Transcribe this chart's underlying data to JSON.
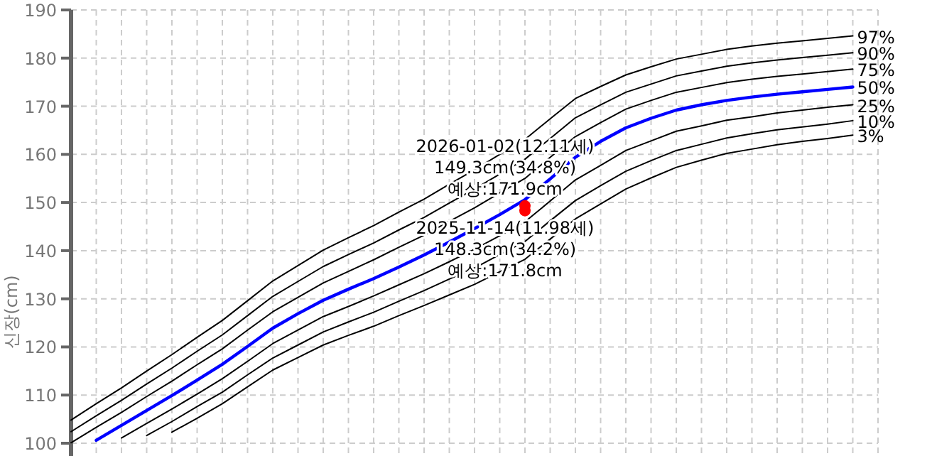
{
  "chart_data": {
    "type": "line",
    "ylabel": "신장(cm)",
    "ylim": [
      100,
      190
    ],
    "yticks": [
      100,
      110,
      120,
      130,
      140,
      150,
      160,
      170,
      180,
      190
    ],
    "categories": [
      null,
      null,
      null,
      null,
      null,
      null,
      null,
      null,
      null,
      null,
      null,
      null,
      null,
      null,
      null,
      null,
      null,
      null,
      null,
      null,
      null,
      null,
      null,
      null,
      null,
      null,
      null,
      null,
      null,
      null,
      null,
      null,
      null
    ],
    "grid": true,
    "marker": "none",
    "series": [
      {
        "name": "97%",
        "color": "#000000",
        "values": [
          104.8,
          108.2,
          111.5,
          115.0,
          118.4,
          122.0,
          125.5,
          129.6,
          133.7,
          136.9,
          140.1,
          142.7,
          145.2,
          148.0,
          150.7,
          153.8,
          156.8,
          160.0,
          163.1,
          167.4,
          171.6,
          174.1,
          176.5,
          178.2,
          179.8,
          180.8,
          181.8,
          182.5,
          183.1,
          183.6,
          184.1,
          184.6,
          null
        ]
      },
      {
        "name": "90%",
        "color": "#000000",
        "values": [
          102.4,
          105.7,
          108.9,
          112.3,
          115.6,
          119.1,
          122.5,
          126.5,
          130.5,
          133.6,
          136.7,
          139.2,
          141.6,
          144.3,
          146.9,
          149.9,
          152.8,
          155.9,
          159.0,
          163.3,
          167.6,
          170.3,
          172.9,
          174.6,
          176.3,
          177.3,
          178.3,
          179.0,
          179.6,
          180.1,
          180.6,
          181.1,
          null
        ]
      },
      {
        "name": "75%",
        "color": "#000000",
        "values": [
          100.1,
          103.3,
          106.4,
          109.7,
          112.9,
          116.3,
          119.6,
          123.5,
          127.3,
          130.3,
          133.3,
          135.7,
          138.1,
          140.7,
          143.2,
          146.1,
          148.9,
          152.0,
          155.0,
          159.4,
          163.7,
          166.6,
          169.4,
          171.2,
          172.9,
          173.9,
          174.9,
          175.6,
          176.2,
          176.7,
          177.2,
          177.7,
          null
        ]
      },
      {
        "name": "50%",
        "color": "#0000ff",
        "values": [
          null,
          100.6,
          103.7,
          106.8,
          109.9,
          113.1,
          116.4,
          120.1,
          123.9,
          126.9,
          129.7,
          132.0,
          134.2,
          136.6,
          139.1,
          141.8,
          144.6,
          147.5,
          150.6,
          154.9,
          159.4,
          162.7,
          165.5,
          167.5,
          169.2,
          170.3,
          171.2,
          171.9,
          172.5,
          173.0,
          173.5,
          174.0,
          null
        ]
      },
      {
        "name": "25%",
        "color": "#000000",
        "values": [
          null,
          null,
          101.1,
          104.1,
          107.1,
          110.2,
          113.4,
          117.0,
          120.7,
          123.5,
          126.3,
          128.4,
          130.6,
          132.9,
          135.2,
          137.7,
          140.3,
          143.1,
          146.0,
          150.3,
          154.7,
          157.7,
          160.8,
          162.8,
          164.8,
          165.9,
          167.1,
          167.8,
          168.6,
          169.2,
          169.8,
          170.3,
          null
        ]
      },
      {
        "name": "10%",
        "color": "#000000",
        "values": [
          null,
          null,
          null,
          101.6,
          104.5,
          107.6,
          110.6,
          114.2,
          117.7,
          120.4,
          123.1,
          125.2,
          127.2,
          129.5,
          131.7,
          134.1,
          136.4,
          139.2,
          141.9,
          146.2,
          150.4,
          153.5,
          156.5,
          158.7,
          160.8,
          162.1,
          163.4,
          164.3,
          165.1,
          165.7,
          166.3,
          167.0,
          null
        ]
      },
      {
        "name": "3%",
        "color": "#000000",
        "values": [
          null,
          null,
          null,
          null,
          102.3,
          105.2,
          108.2,
          111.7,
          115.2,
          117.8,
          120.4,
          122.4,
          124.3,
          126.5,
          128.6,
          130.8,
          133.0,
          135.6,
          138.2,
          142.4,
          146.6,
          149.7,
          152.8,
          155.1,
          157.3,
          158.8,
          160.2,
          161.1,
          162.0,
          162.7,
          163.3,
          164.0,
          null
        ]
      },
      {
        "type": "scatter",
        "marker": "circle",
        "color": "#ff0000",
        "values": [
          null,
          null,
          null,
          null,
          null,
          null,
          null,
          null,
          null,
          null,
          null,
          null,
          null,
          null,
          null,
          null,
          null,
          null,
          148.3,
          null,
          null,
          null,
          null,
          null,
          null,
          null,
          null,
          null,
          null,
          null,
          null,
          null,
          null
        ]
      },
      {
        "type": "scatter",
        "marker": "circle",
        "color": "#ff0000",
        "values": [
          null,
          null,
          null,
          null,
          null,
          null,
          null,
          null,
          null,
          null,
          null,
          null,
          null,
          null,
          null,
          null,
          null,
          null,
          149.3,
          null,
          null,
          null,
          null,
          null,
          null,
          null,
          null,
          null,
          null,
          null,
          null,
          null,
          null
        ]
      }
    ],
    "annotations": [
      {
        "text": "2026-01-02(12.11세)\n149.3cm(34.8%)\n예상:171.9cm",
        "y": 149.3
      },
      {
        "text": "2025-11-14(11.98세)\n148.3cm(34.2%)\n예상:171.8cm",
        "y": 148.3
      }
    ]
  }
}
